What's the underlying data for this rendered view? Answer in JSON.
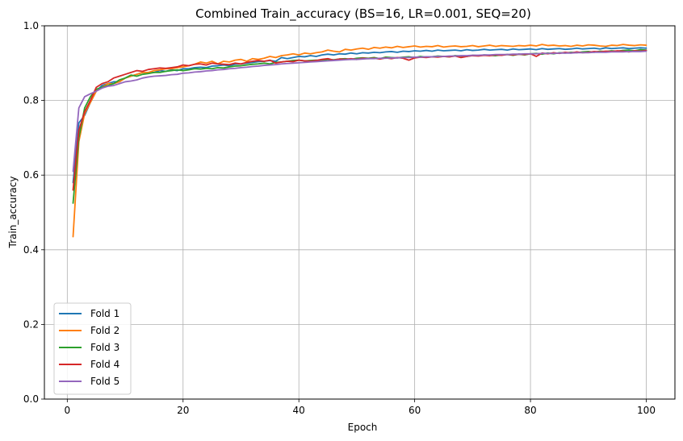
{
  "chart_data": {
    "type": "line",
    "title": "Combined Train_accuracy (BS=16, LR=0.001, SEQ=20)",
    "xlabel": "Epoch",
    "ylabel": "Train_accuracy",
    "xlim": [
      -3.95,
      104.95
    ],
    "ylim": [
      0.0,
      1.0
    ],
    "xticks": [
      0,
      20,
      40,
      60,
      80,
      100
    ],
    "xtick_labels": [
      "0",
      "20",
      "40",
      "60",
      "80",
      "100"
    ],
    "yticks": [
      0.0,
      0.2,
      0.4,
      0.6,
      0.8,
      1.0
    ],
    "ytick_labels": [
      "0.0",
      "0.2",
      "0.4",
      "0.6",
      "0.8",
      "1.0"
    ],
    "grid": true,
    "legend_position": "lower-left",
    "x": [
      1,
      2,
      3,
      4,
      5,
      6,
      7,
      8,
      9,
      10,
      11,
      12,
      13,
      14,
      15,
      16,
      17,
      18,
      19,
      20,
      21,
      22,
      23,
      24,
      25,
      26,
      27,
      28,
      29,
      30,
      31,
      32,
      33,
      34,
      35,
      36,
      37,
      38,
      39,
      40,
      41,
      42,
      43,
      44,
      45,
      46,
      47,
      48,
      49,
      50,
      51,
      52,
      53,
      54,
      55,
      56,
      57,
      58,
      59,
      60,
      61,
      62,
      63,
      64,
      65,
      66,
      67,
      68,
      69,
      70,
      71,
      72,
      73,
      74,
      75,
      76,
      77,
      78,
      79,
      80,
      81,
      82,
      83,
      84,
      85,
      86,
      87,
      88,
      89,
      90,
      91,
      92,
      93,
      94,
      95,
      96,
      97,
      98,
      99,
      100
    ],
    "series": [
      {
        "name": "Fold 1",
        "color": "#1f77b4",
        "values": [
          0.58,
          0.74,
          0.76,
          0.795,
          0.825,
          0.84,
          0.845,
          0.85,
          0.85,
          0.86,
          0.865,
          0.87,
          0.875,
          0.875,
          0.875,
          0.88,
          0.878,
          0.882,
          0.88,
          0.885,
          0.885,
          0.888,
          0.889,
          0.888,
          0.892,
          0.893,
          0.895,
          0.893,
          0.897,
          0.898,
          0.9,
          0.902,
          0.904,
          0.905,
          0.907,
          0.905,
          0.915,
          0.912,
          0.915,
          0.918,
          0.917,
          0.92,
          0.918,
          0.922,
          0.924,
          0.922,
          0.925,
          0.924,
          0.927,
          0.925,
          0.928,
          0.927,
          0.929,
          0.928,
          0.93,
          0.931,
          0.929,
          0.932,
          0.931,
          0.933,
          0.932,
          0.934,
          0.932,
          0.935,
          0.933,
          0.934,
          0.935,
          0.933,
          0.936,
          0.934,
          0.935,
          0.937,
          0.935,
          0.936,
          0.937,
          0.935,
          0.938,
          0.936,
          0.937,
          0.938,
          0.936,
          0.939,
          0.937,
          0.938,
          0.939,
          0.937,
          0.938,
          0.94,
          0.938,
          0.939,
          0.94,
          0.938,
          0.941,
          0.939,
          0.94,
          0.941,
          0.939,
          0.94,
          0.941,
          0.94
        ]
      },
      {
        "name": "Fold 2",
        "color": "#ff7f0e",
        "values": [
          0.435,
          0.69,
          0.765,
          0.795,
          0.825,
          0.835,
          0.845,
          0.845,
          0.85,
          0.86,
          0.865,
          0.87,
          0.875,
          0.875,
          0.88,
          0.882,
          0.885,
          0.885,
          0.888,
          0.89,
          0.893,
          0.897,
          0.903,
          0.9,
          0.905,
          0.898,
          0.905,
          0.903,
          0.908,
          0.91,
          0.905,
          0.912,
          0.91,
          0.913,
          0.918,
          0.915,
          0.92,
          0.922,
          0.925,
          0.922,
          0.927,
          0.925,
          0.928,
          0.93,
          0.935,
          0.932,
          0.93,
          0.937,
          0.935,
          0.938,
          0.94,
          0.937,
          0.942,
          0.94,
          0.943,
          0.941,
          0.945,
          0.942,
          0.944,
          0.946,
          0.943,
          0.945,
          0.944,
          0.947,
          0.943,
          0.945,
          0.946,
          0.944,
          0.945,
          0.947,
          0.944,
          0.946,
          0.948,
          0.945,
          0.947,
          0.946,
          0.945,
          0.947,
          0.946,
          0.948,
          0.946,
          0.95,
          0.947,
          0.948,
          0.946,
          0.947,
          0.945,
          0.948,
          0.946,
          0.949,
          0.948,
          0.946,
          0.945,
          0.948,
          0.947,
          0.95,
          0.948,
          0.947,
          0.949,
          0.948
        ]
      },
      {
        "name": "Fold 3",
        "color": "#2ca02c",
        "values": [
          0.525,
          0.7,
          0.78,
          0.81,
          0.83,
          0.835,
          0.84,
          0.845,
          0.855,
          0.86,
          0.868,
          0.865,
          0.87,
          0.872,
          0.875,
          0.875,
          0.878,
          0.88,
          0.882,
          0.88,
          0.882,
          0.885,
          0.884,
          0.886,
          0.885,
          0.888,
          0.887,
          0.89,
          0.892,
          0.893,
          0.895,
          0.897,
          0.898,
          0.9,
          0.898,
          0.902,
          0.903,
          0.905,
          0.907,
          0.908,
          0.906,
          0.907,
          0.908,
          0.906,
          0.91,
          0.909,
          0.911,
          0.912,
          0.91,
          0.913,
          0.914,
          0.913,
          0.915,
          0.912,
          0.916,
          0.915,
          0.914,
          0.916,
          0.917,
          0.915,
          0.918,
          0.916,
          0.917,
          0.919,
          0.918,
          0.917,
          0.92,
          0.919,
          0.918,
          0.921,
          0.92,
          0.922,
          0.921,
          0.92,
          0.922,
          0.923,
          0.921,
          0.924,
          0.922,
          0.925,
          0.926,
          0.924,
          0.927,
          0.925,
          0.928,
          0.927,
          0.929,
          0.928,
          0.93,
          0.931,
          0.929,
          0.932,
          0.931,
          0.933,
          0.932,
          0.934,
          0.935,
          0.933,
          0.936,
          0.935
        ]
      },
      {
        "name": "Fold 4",
        "color": "#d62728",
        "values": [
          0.56,
          0.72,
          0.77,
          0.8,
          0.835,
          0.845,
          0.85,
          0.86,
          0.865,
          0.87,
          0.875,
          0.88,
          0.878,
          0.883,
          0.885,
          0.887,
          0.886,
          0.888,
          0.89,
          0.895,
          0.893,
          0.897,
          0.898,
          0.895,
          0.9,
          0.898,
          0.897,
          0.896,
          0.9,
          0.898,
          0.902,
          0.905,
          0.907,
          0.905,
          0.908,
          0.9,
          0.903,
          0.905,
          0.904,
          0.908,
          0.906,
          0.905,
          0.907,
          0.91,
          0.912,
          0.908,
          0.911,
          0.91,
          0.912,
          0.91,
          0.913,
          0.912,
          0.913,
          0.911,
          0.914,
          0.912,
          0.915,
          0.913,
          0.908,
          0.914,
          0.916,
          0.915,
          0.917,
          0.916,
          0.918,
          0.917,
          0.919,
          0.915,
          0.918,
          0.92,
          0.919,
          0.921,
          0.92,
          0.922,
          0.921,
          0.923,
          0.922,
          0.924,
          0.923,
          0.925,
          0.918,
          0.927,
          0.925,
          0.928,
          0.926,
          0.929,
          0.927,
          0.93,
          0.928,
          0.929,
          0.931,
          0.93,
          0.932,
          0.931,
          0.933,
          0.932,
          0.93,
          0.933,
          0.932,
          0.934
        ]
      },
      {
        "name": "Fold 5",
        "color": "#9467bd",
        "values": [
          0.61,
          0.78,
          0.81,
          0.818,
          0.825,
          0.833,
          0.838,
          0.84,
          0.845,
          0.85,
          0.852,
          0.855,
          0.86,
          0.863,
          0.865,
          0.866,
          0.867,
          0.869,
          0.87,
          0.873,
          0.874,
          0.876,
          0.877,
          0.879,
          0.88,
          0.882,
          0.883,
          0.885,
          0.886,
          0.888,
          0.889,
          0.891,
          0.892,
          0.894,
          0.895,
          0.896,
          0.898,
          0.899,
          0.9,
          0.901,
          0.902,
          0.903,
          0.904,
          0.905,
          0.906,
          0.907,
          0.908,
          0.909,
          0.91,
          0.91,
          0.911,
          0.912,
          0.912,
          0.913,
          0.913,
          0.914,
          0.914,
          0.915,
          0.915,
          0.916,
          0.916,
          0.917,
          0.917,
          0.918,
          0.918,
          0.919,
          0.919,
          0.92,
          0.92,
          0.921,
          0.921,
          0.922,
          0.922,
          0.923,
          0.923,
          0.923,
          0.924,
          0.924,
          0.925,
          0.925,
          0.925,
          0.926,
          0.926,
          0.926,
          0.927,
          0.927,
          0.927,
          0.928,
          0.928,
          0.928,
          0.929,
          0.929,
          0.929,
          0.93,
          0.93,
          0.93,
          0.931,
          0.931,
          0.931,
          0.932
        ]
      }
    ]
  }
}
